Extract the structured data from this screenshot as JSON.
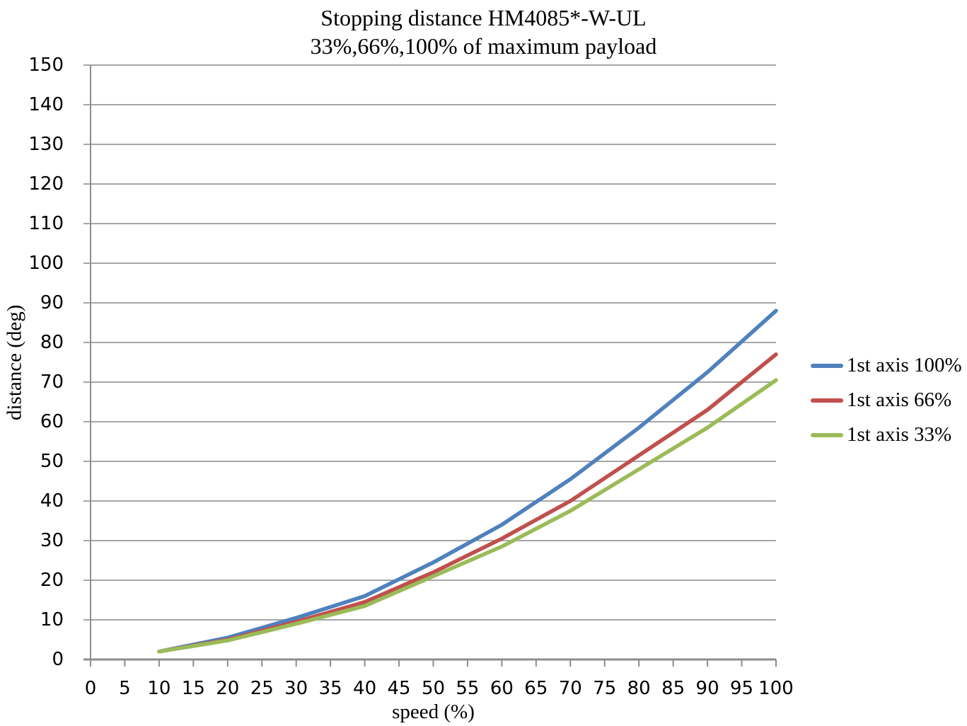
{
  "chart_data": {
    "type": "line",
    "title": "Stopping distance HM4085*-W-UL",
    "subtitle": "33%,66%,100% of maximum payload",
    "xlabel": "speed (%)",
    "ylabel": "distance (deg)",
    "xlim": [
      0,
      100
    ],
    "ylim": [
      0,
      150
    ],
    "x_ticks": [
      0,
      5,
      10,
      15,
      20,
      25,
      30,
      35,
      40,
      45,
      50,
      55,
      60,
      65,
      70,
      75,
      80,
      85,
      90,
      95,
      100
    ],
    "y_ticks": [
      0,
      10,
      20,
      30,
      40,
      50,
      60,
      70,
      80,
      90,
      100,
      110,
      120,
      130,
      140,
      150
    ],
    "grid": "horizontal-only",
    "legend_position": "right",
    "x": [
      10,
      20,
      30,
      40,
      50,
      60,
      70,
      80,
      90,
      100
    ],
    "series": [
      {
        "name": "1st axis 100%",
        "color": "#4F81BD",
        "values": [
          2,
          5.5,
          10.5,
          16,
          24.5,
          34,
          45.5,
          58.5,
          72.5,
          88
        ]
      },
      {
        "name": "1st axis 66%",
        "color": "#C0504D",
        "values": [
          2,
          5,
          9.5,
          14.5,
          22,
          30.5,
          40,
          51.5,
          63,
          77
        ]
      },
      {
        "name": "1st axis 33%",
        "color": "#9BBB59",
        "values": [
          2,
          4.8,
          9,
          13.5,
          21,
          28.5,
          37.5,
          48,
          58.5,
          70.5
        ]
      }
    ],
    "colors": {
      "gridline": "#A6A6A6",
      "axis": "#8C8C8C",
      "text": "#000000",
      "background": "#FFFFFF"
    }
  }
}
